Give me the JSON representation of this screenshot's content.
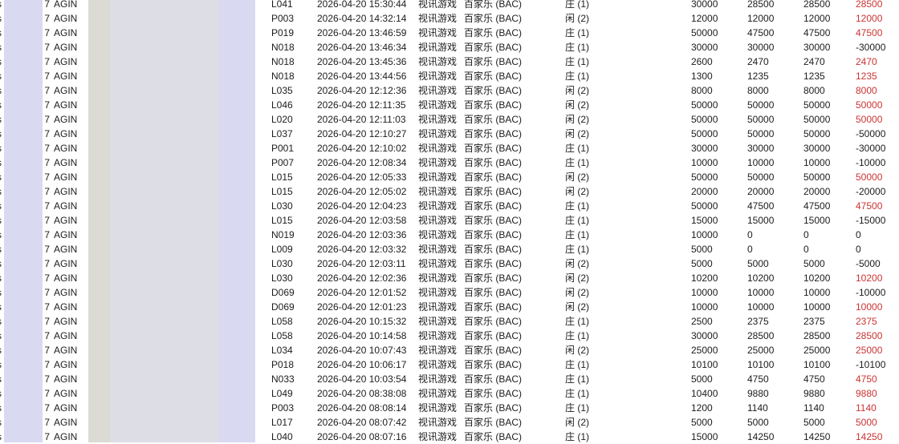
{
  "colors": {
    "band_lavender": "#d9d9f2",
    "band_gray": "#dbdbd4",
    "band_light": "#dddde5",
    "win_positive_red": "#cc3333",
    "text": "#1c1c1c"
  },
  "table": {
    "row_constants": {
      "left_edge_char": "s",
      "level": "7",
      "agent": "AGIN",
      "game_type": "视讯游戏",
      "game_name": "百家乐 (BAC)"
    },
    "bet_type_labels": {
      "banker": "庄 (1)",
      "player": "闲 (2)"
    },
    "rows": [
      {
        "code": "L041",
        "time": "2026-04-20 15:30:44",
        "bet": "庄 (1)",
        "bet_amount": "30000",
        "valid_1": "28500",
        "valid_2": "28500",
        "win_loss": "28500"
      },
      {
        "code": "P003",
        "time": "2026-04-20 14:32:14",
        "bet": "闲 (2)",
        "bet_amount": "12000",
        "valid_1": "12000",
        "valid_2": "12000",
        "win_loss": "12000"
      },
      {
        "code": "P019",
        "time": "2026-04-20 13:46:59",
        "bet": "庄 (1)",
        "bet_amount": "50000",
        "valid_1": "47500",
        "valid_2": "47500",
        "win_loss": "47500"
      },
      {
        "code": "N018",
        "time": "2026-04-20 13:46:34",
        "bet": "庄 (1)",
        "bet_amount": "30000",
        "valid_1": "30000",
        "valid_2": "30000",
        "win_loss": "-30000"
      },
      {
        "code": "N018",
        "time": "2026-04-20 13:45:36",
        "bet": "庄 (1)",
        "bet_amount": "2600",
        "valid_1": "2470",
        "valid_2": "2470",
        "win_loss": "2470"
      },
      {
        "code": "N018",
        "time": "2026-04-20 13:44:56",
        "bet": "庄 (1)",
        "bet_amount": "1300",
        "valid_1": "1235",
        "valid_2": "1235",
        "win_loss": "1235"
      },
      {
        "code": "L035",
        "time": "2026-04-20 12:12:36",
        "bet": "闲 (2)",
        "bet_amount": "8000",
        "valid_1": "8000",
        "valid_2": "8000",
        "win_loss": "8000"
      },
      {
        "code": "L046",
        "time": "2026-04-20 12:11:35",
        "bet": "闲 (2)",
        "bet_amount": "50000",
        "valid_1": "50000",
        "valid_2": "50000",
        "win_loss": "50000"
      },
      {
        "code": "L020",
        "time": "2026-04-20 12:11:03",
        "bet": "闲 (2)",
        "bet_amount": "50000",
        "valid_1": "50000",
        "valid_2": "50000",
        "win_loss": "50000"
      },
      {
        "code": "L037",
        "time": "2026-04-20 12:10:27",
        "bet": "闲 (2)",
        "bet_amount": "50000",
        "valid_1": "50000",
        "valid_2": "50000",
        "win_loss": "-50000"
      },
      {
        "code": "P001",
        "time": "2026-04-20 12:10:02",
        "bet": "庄 (1)",
        "bet_amount": "30000",
        "valid_1": "30000",
        "valid_2": "30000",
        "win_loss": "-30000"
      },
      {
        "code": "P007",
        "time": "2026-04-20 12:08:34",
        "bet": "庄 (1)",
        "bet_amount": "10000",
        "valid_1": "10000",
        "valid_2": "10000",
        "win_loss": "-10000"
      },
      {
        "code": "L015",
        "time": "2026-04-20 12:05:33",
        "bet": "闲 (2)",
        "bet_amount": "50000",
        "valid_1": "50000",
        "valid_2": "50000",
        "win_loss": "50000"
      },
      {
        "code": "L015",
        "time": "2026-04-20 12:05:02",
        "bet": "闲 (2)",
        "bet_amount": "20000",
        "valid_1": "20000",
        "valid_2": "20000",
        "win_loss": "-20000"
      },
      {
        "code": "L030",
        "time": "2026-04-20 12:04:23",
        "bet": "庄 (1)",
        "bet_amount": "50000",
        "valid_1": "47500",
        "valid_2": "47500",
        "win_loss": "47500"
      },
      {
        "code": "L015",
        "time": "2026-04-20 12:03:58",
        "bet": "庄 (1)",
        "bet_amount": "15000",
        "valid_1": "15000",
        "valid_2": "15000",
        "win_loss": "-15000"
      },
      {
        "code": "N019",
        "time": "2026-04-20 12:03:36",
        "bet": "庄 (1)",
        "bet_amount": "10000",
        "valid_1": "0",
        "valid_2": "0",
        "win_loss": "0"
      },
      {
        "code": "L009",
        "time": "2026-04-20 12:03:32",
        "bet": "庄 (1)",
        "bet_amount": "5000",
        "valid_1": "0",
        "valid_2": "0",
        "win_loss": "0"
      },
      {
        "code": "L030",
        "time": "2026-04-20 12:03:11",
        "bet": "闲 (2)",
        "bet_amount": "5000",
        "valid_1": "5000",
        "valid_2": "5000",
        "win_loss": "-5000"
      },
      {
        "code": "L030",
        "time": "2026-04-20 12:02:36",
        "bet": "闲 (2)",
        "bet_amount": "10200",
        "valid_1": "10200",
        "valid_2": "10200",
        "win_loss": "10200"
      },
      {
        "code": "D069",
        "time": "2026-04-20 12:01:52",
        "bet": "闲 (2)",
        "bet_amount": "10000",
        "valid_1": "10000",
        "valid_2": "10000",
        "win_loss": "-10000"
      },
      {
        "code": "D069",
        "time": "2026-04-20 12:01:23",
        "bet": "闲 (2)",
        "bet_amount": "10000",
        "valid_1": "10000",
        "valid_2": "10000",
        "win_loss": "10000"
      },
      {
        "code": "L058",
        "time": "2026-04-20 10:15:32",
        "bet": "庄 (1)",
        "bet_amount": "2500",
        "valid_1": "2375",
        "valid_2": "2375",
        "win_loss": "2375"
      },
      {
        "code": "L058",
        "time": "2026-04-20 10:14:58",
        "bet": "庄 (1)",
        "bet_amount": "30000",
        "valid_1": "28500",
        "valid_2": "28500",
        "win_loss": "28500"
      },
      {
        "code": "L034",
        "time": "2026-04-20 10:07:43",
        "bet": "闲 (2)",
        "bet_amount": "25000",
        "valid_1": "25000",
        "valid_2": "25000",
        "win_loss": "25000"
      },
      {
        "code": "P018",
        "time": "2026-04-20 10:06:17",
        "bet": "庄 (1)",
        "bet_amount": "10100",
        "valid_1": "10100",
        "valid_2": "10100",
        "win_loss": "-10100"
      },
      {
        "code": "N033",
        "time": "2026-04-20 10:03:54",
        "bet": "庄 (1)",
        "bet_amount": "5000",
        "valid_1": "4750",
        "valid_2": "4750",
        "win_loss": "4750"
      },
      {
        "code": "L049",
        "time": "2026-04-20 08:38:08",
        "bet": "庄 (1)",
        "bet_amount": "10400",
        "valid_1": "9880",
        "valid_2": "9880",
        "win_loss": "9880"
      },
      {
        "code": "P003",
        "time": "2026-04-20 08:08:14",
        "bet": "庄 (1)",
        "bet_amount": "1200",
        "valid_1": "1140",
        "valid_2": "1140",
        "win_loss": "1140"
      },
      {
        "code": "L017",
        "time": "2026-04-20 08:07:42",
        "bet": "闲 (2)",
        "bet_amount": "5000",
        "valid_1": "5000",
        "valid_2": "5000",
        "win_loss": "5000"
      },
      {
        "code": "L040",
        "time": "2026-04-20 08:07:16",
        "bet": "庄 (1)",
        "bet_amount": "15000",
        "valid_1": "14250",
        "valid_2": "14250",
        "win_loss": "14250"
      }
    ]
  }
}
